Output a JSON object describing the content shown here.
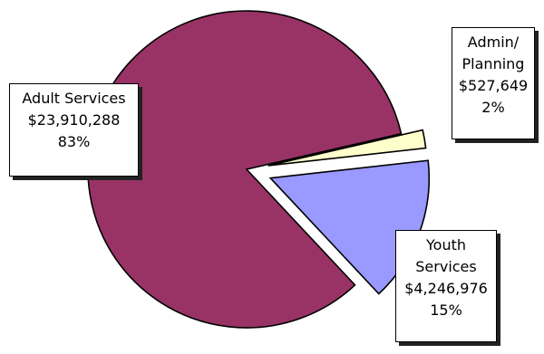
{
  "chart_data": {
    "type": "pie",
    "legend": "none",
    "slices": [
      {
        "name_lines": [
          "Adult Services"
        ],
        "value_label": "$23,910,288",
        "percent_label": "83%",
        "value": 23910288,
        "percent": 83,
        "color": "#993366"
      },
      {
        "name_lines": [
          "Admin/",
          "Planning"
        ],
        "value_label": "$527,649",
        "percent_label": "2%",
        "value": 527649,
        "percent": 2,
        "color": "#ffffcc"
      },
      {
        "name_lines": [
          "Youth",
          "Services"
        ],
        "value_label": "$4,246,976",
        "percent_label": "15%",
        "value": 4246976,
        "percent": 15,
        "color": "#9999ff"
      }
    ]
  }
}
